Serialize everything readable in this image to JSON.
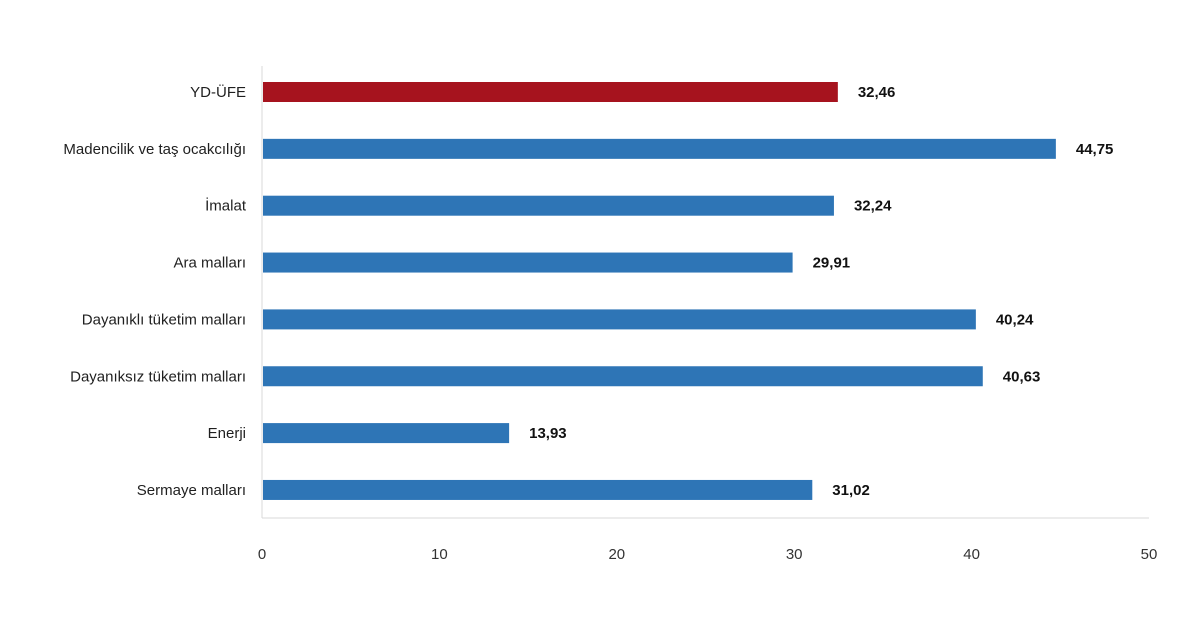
{
  "chart_data": {
    "type": "bar",
    "orientation": "horizontal",
    "categories": [
      "YD-ÜFE",
      "Madencilik ve taş ocakcılığı",
      "İmalat",
      "Ara malları",
      "Dayanıklı tüketim malları",
      "Dayanıksız tüketim malları",
      "Enerji",
      "Sermaye malları"
    ],
    "values": [
      32.46,
      44.75,
      32.24,
      29.91,
      40.24,
      40.63,
      13.93,
      31.02
    ],
    "value_labels": [
      "32,46",
      "44,75",
      "32,24",
      "29,91",
      "40,24",
      "40,63",
      "13,93",
      "31,02"
    ],
    "highlight_index": 0,
    "colors": {
      "highlight": "#a6131e",
      "default": "#2e75b6"
    },
    "xlim": [
      0,
      50
    ],
    "xticks": [
      0,
      10,
      20,
      30,
      40,
      50
    ],
    "title": "",
    "xlabel": "",
    "ylabel": "",
    "grid": false,
    "legend": "none"
  }
}
